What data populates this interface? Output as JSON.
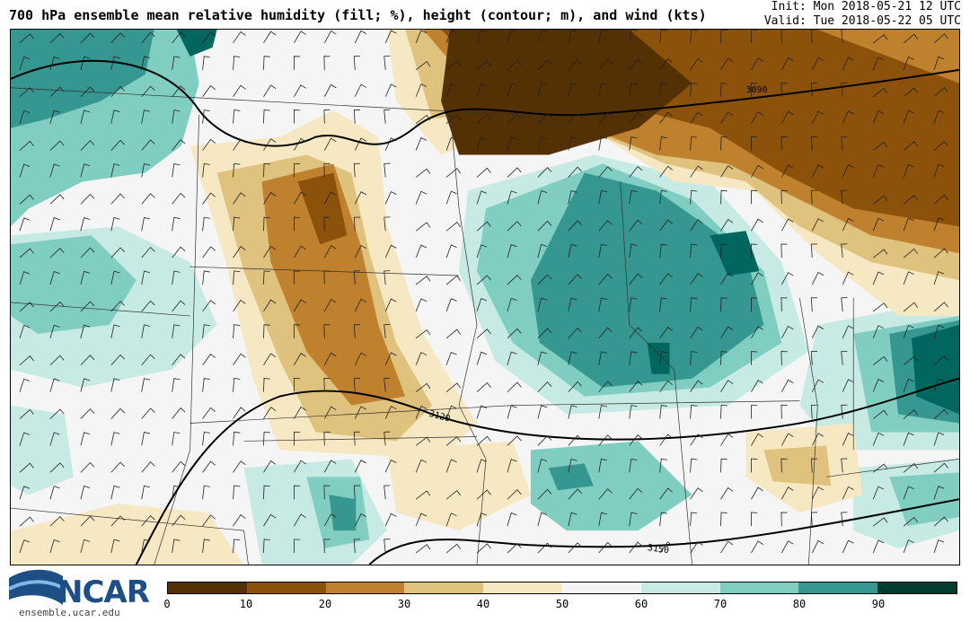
{
  "header": {
    "title": "700 hPa ensemble mean relative humidity (fill; %), height (contour; m), and wind (kts)",
    "init": "Init: Mon 2018-05-21 12 UTC",
    "valid": "Valid: Tue 2018-05-22 05 UTC"
  },
  "contour_labels": [
    "3090",
    "3120",
    "3150"
  ],
  "colorbar": {
    "ticks": [
      "0",
      "10",
      "20",
      "30",
      "40",
      "50",
      "60",
      "70",
      "80",
      "90"
    ],
    "colors": [
      "#543005",
      "#8c510a",
      "#bf812d",
      "#dfc27d",
      "#f6e8c3",
      "#f5f5f5",
      "#c7eae5",
      "#80cdc1",
      "#35978f",
      "#01665e",
      "#003c30"
    ]
  },
  "logo": {
    "name": "NCAR",
    "url": "ensemble.ucar.edu"
  }
}
